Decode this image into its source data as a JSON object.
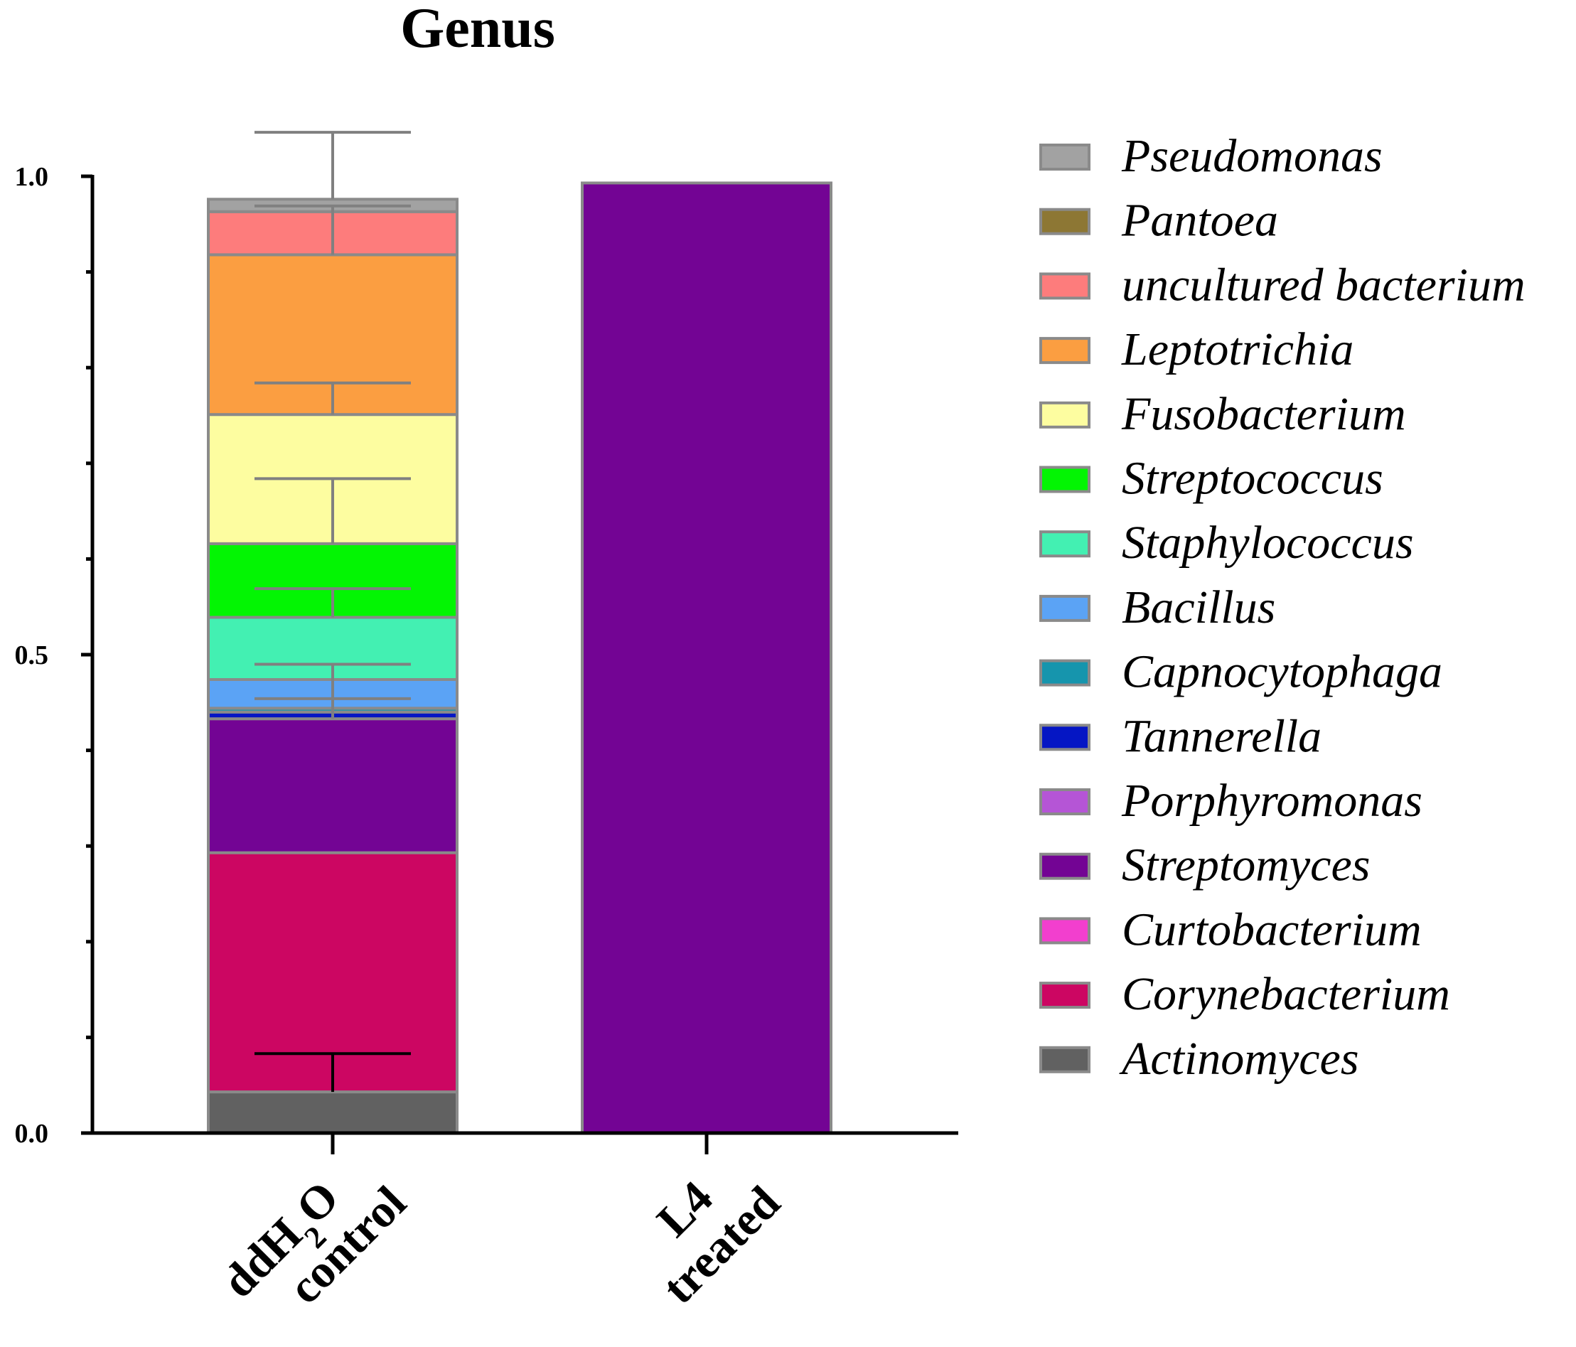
{
  "chart_data": {
    "type": "bar",
    "stacked": true,
    "title": "Genus",
    "xlabel": "",
    "ylabel": "",
    "ylim": [
      0,
      1.0
    ],
    "yticks": [
      0.0,
      0.5,
      1.0
    ],
    "ytick_labels": [
      "0.0",
      "0.5",
      "1.0"
    ],
    "grid": false,
    "legend_position": "right",
    "categories": [
      {
        "line1": "ddH",
        "sub": "2",
        "line1_suffix": "O",
        "line2": "control"
      },
      {
        "line1": "L4",
        "sub": "",
        "line1_suffix": "",
        "line2": "treated"
      }
    ],
    "series": [
      {
        "name": "Actinomyces",
        "color": "#616161",
        "values": [
          0.043,
          0.0
        ],
        "error": [
          0.04,
          0.0
        ],
        "error_color": "#000000"
      },
      {
        "name": "Corynebacterium",
        "color": "#cc0662",
        "values": [
          0.25,
          0.0
        ],
        "error": null
      },
      {
        "name": "Curtobacterium",
        "color": "#f23fce",
        "values": [
          0.0,
          0.0
        ],
        "error": null
      },
      {
        "name": "Streptomyces",
        "color": "#730494",
        "values": [
          0.14,
          0.993
        ],
        "error": [
          0.057,
          0.0
        ]
      },
      {
        "name": "Porphyromonas",
        "color": "#b555d6",
        "values": [
          0.0,
          0.0
        ],
        "error": null
      },
      {
        "name": "Tannerella",
        "color": "#0516c4",
        "values": [
          0.007,
          0.0
        ],
        "error": null
      },
      {
        "name": "Capnocytophaga",
        "color": "#1695ad",
        "values": [
          0.004,
          0.0
        ],
        "error": [
          0.01,
          0.0
        ]
      },
      {
        "name": "Bacillus",
        "color": "#5ba3f5",
        "values": [
          0.03,
          0.0
        ],
        "error": null
      },
      {
        "name": "Staphylococcus",
        "color": "#43f0b2",
        "values": [
          0.065,
          0.0
        ],
        "error": [
          0.03,
          0.0
        ]
      },
      {
        "name": "Streptococcus",
        "color": "#03f503",
        "values": [
          0.077,
          0.0
        ],
        "error": [
          0.068,
          0.0
        ]
      },
      {
        "name": "Fusobacterium",
        "color": "#fdfda0",
        "values": [
          0.135,
          0.0
        ],
        "error": [
          0.033,
          0.0
        ]
      },
      {
        "name": "Leptotrichia",
        "color": "#fb9e41",
        "values": [
          0.167,
          0.0
        ],
        "error": [
          0.051,
          0.0
        ]
      },
      {
        "name": "uncultured bacterium",
        "color": "#fd7c7c",
        "values": [
          0.045,
          0.0
        ],
        "error": null
      },
      {
        "name": "Pantoea",
        "color": "#8d7734",
        "values": [
          0.0,
          0.0
        ],
        "error": null
      },
      {
        "name": "Pseudomonas",
        "color": "#a2a2a2",
        "values": [
          0.013,
          0.0
        ],
        "error": [
          0.07,
          0.0
        ]
      }
    ],
    "legend_order": [
      "Pseudomonas",
      "Pantoea",
      "uncultured bacterium",
      "Leptotrichia",
      "Fusobacterium",
      "Streptococcus",
      "Staphylococcus",
      "Bacillus",
      "Capnocytophaga",
      "Tannerella",
      "Porphyromonas",
      "Streptomyces",
      "Curtobacterium",
      "Corynebacterium",
      "Actinomyces"
    ],
    "colors": {
      "bar_outline": "#8a8a8a",
      "axis": "#000000",
      "error_bar": "#808080"
    }
  }
}
